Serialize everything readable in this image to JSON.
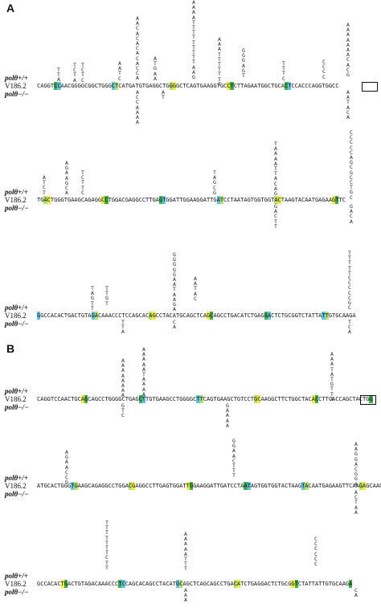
{
  "panels": [
    {
      "label": "A",
      "rows": [
        {
          "labels": [
            "polθ+/+",
            "V186.2",
            "polθ−/−"
          ],
          "sequence": "CAGGTCCAACGGGGCGGCTGGGCTCATGATGTGAGGCTGGGGCTCAGTGAAGGTGCCTCTTAGAATGGCTGCACTCCACCCAGGTGGCC"
        },
        {
          "labels": [
            "polθ+/+",
            "V186.2",
            "polθ−/−"
          ],
          "sequence": "TGACTGGGTGAAGCAGAGGCCTGGACGAGGCCTTGAGTGGATTGGAAGGATTGATCCTAATAGTGGTGGTACTAAGTACAATGAGAAGTTC"
        },
        {
          "labels": [
            "polθ+/+",
            "V186.2",
            "polθ−/−"
          ],
          "sequence": "GGCCACACTGACTGTAGACAAACCCTCCAGCACAGCCTACATGCAGCTCAGCAGCCTGACATCTGAGGACTCTGCGGTCTATTATTGTGCAAGA"
        }
      ]
    },
    {
      "label": "B",
      "rows": [
        {
          "labels": [
            "polθ+/+",
            "V186.2",
            "polθ−/−"
          ],
          "sequence": "CAGGTCCAACTGCAGCAGCCTGGGGCTGAGCTTGTGAAGCCTGGGGCTTCAGTGAAGCTGTCCTGCAAGGCTTCTGGCTACACCTTCACCAGCTACTGG"
        },
        {
          "labels": [
            "polθ+/+",
            "V186.2",
            "polθ−/−"
          ],
          "sequence": "ATGCACTGGGTGAAGCAGAGGCCTGGACGAGGCCTTGAGTGGATTGGAAGGATTGATCCTAATAGTGGTGGTACTAAGTACAATGAGAAGTTCAAGAGCAAGG"
        },
        {
          "labels": [
            "polθ+/+",
            "V186.2",
            "polθ−/−"
          ],
          "sequence": "GCCACACTGACTGTAGACAAACCCTCCAGCACAGCCTACATGCAGCTCAGCAGCCTGACATCTGAGGACTCTGCGGTCTATTATTGTGCAAGA"
        }
      ]
    }
  ],
  "caption": "distribution of mutations in the V186.2 region of V186.2/Vλ1 transgenic polθ+/+ and polθ−/− mice..."
}
